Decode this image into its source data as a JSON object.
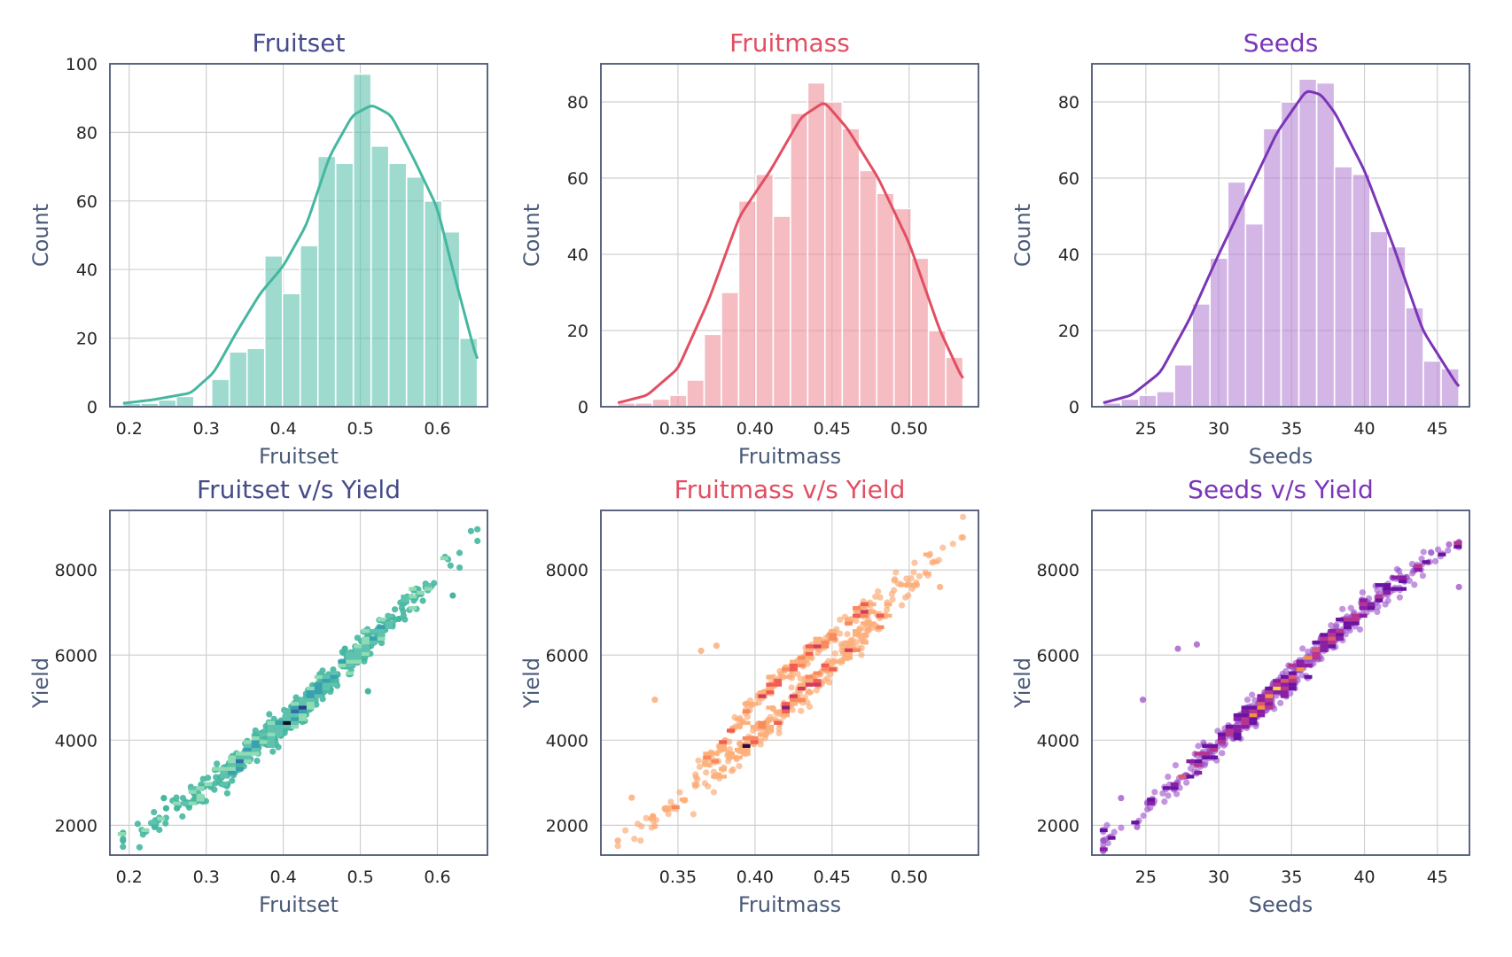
{
  "colors": {
    "fruitset": "#5ec2ae",
    "fruitset_line": "#45b7a0",
    "fruitmass": "#ee8f99",
    "fruitmass_line": "#e24e62",
    "seeds": "#b586d4",
    "seeds_line": "#7b35b8",
    "title_fruitset": "#454b8a",
    "title_fruitmass": "#e24e62",
    "title_seeds": "#7b35b8"
  },
  "chart_data": [
    {
      "type": "bar",
      "subtype": "histogram",
      "title": "Fruitset",
      "xlabel": "Fruitset",
      "ylabel": "Count",
      "xlim": [
        0.175,
        0.665
      ],
      "ylim": [
        0,
        100
      ],
      "xticks": [
        0.2,
        0.3,
        0.4,
        0.5,
        0.6
      ],
      "xtick_labels": [
        "0.2",
        "0.3",
        "0.4",
        "0.5",
        "0.6"
      ],
      "yticks": [
        0,
        20,
        40,
        60,
        80,
        100
      ],
      "ytick_labels": [
        "0",
        "20",
        "40",
        "60",
        "80",
        "100"
      ],
      "bin_edges": [
        0.192,
        0.215,
        0.238,
        0.261,
        0.284,
        0.307,
        0.33,
        0.353,
        0.376,
        0.399,
        0.422,
        0.445,
        0.468,
        0.491,
        0.514,
        0.537,
        0.56,
        0.583,
        0.606,
        0.629,
        0.652
      ],
      "values": [
        1,
        1,
        2,
        3,
        0,
        8,
        16,
        17,
        44,
        33,
        47,
        73,
        71,
        97,
        76,
        71,
        67,
        60,
        51,
        20
      ],
      "kde_x": [
        0.192,
        0.23,
        0.28,
        0.31,
        0.34,
        0.37,
        0.4,
        0.43,
        0.46,
        0.49,
        0.515,
        0.54,
        0.57,
        0.6,
        0.62,
        0.652
      ],
      "kde_y": [
        1,
        2,
        4,
        10,
        22,
        33,
        41,
        53,
        73,
        85,
        88,
        85,
        72,
        58,
        40,
        13
      ],
      "grid": true
    },
    {
      "type": "bar",
      "subtype": "histogram",
      "title": "Fruitmass",
      "xlabel": "Fruitmass",
      "ylabel": "Count",
      "xlim": [
        0.3,
        0.545
      ],
      "ylim": [
        0,
        90
      ],
      "xticks": [
        0.35,
        0.4,
        0.45,
        0.5
      ],
      "xtick_labels": [
        "0.35",
        "0.40",
        "0.45",
        "0.50"
      ],
      "yticks": [
        0,
        20,
        40,
        60,
        80
      ],
      "ytick_labels": [
        "0",
        "20",
        "40",
        "60",
        "80"
      ],
      "bin_edges": [
        0.311,
        0.3222,
        0.3334,
        0.3446,
        0.3558,
        0.367,
        0.3782,
        0.3894,
        0.4006,
        0.4118,
        0.423,
        0.4342,
        0.4454,
        0.4566,
        0.4678,
        0.479,
        0.4902,
        0.5014,
        0.5126,
        0.5238,
        0.535
      ],
      "values": [
        1,
        1,
        2,
        3,
        7,
        19,
        30,
        54,
        61,
        50,
        77,
        85,
        80,
        73,
        62,
        56,
        52,
        39,
        20,
        13
      ],
      "kde_x": [
        0.311,
        0.33,
        0.35,
        0.37,
        0.39,
        0.41,
        0.43,
        0.445,
        0.46,
        0.48,
        0.5,
        0.52,
        0.535
      ],
      "kde_y": [
        1,
        3,
        10,
        28,
        50,
        62,
        76,
        80,
        73,
        60,
        43,
        20,
        7
      ],
      "grid": true
    },
    {
      "type": "bar",
      "subtype": "histogram",
      "title": "Seeds",
      "xlabel": "Seeds",
      "ylabel": "Count",
      "xlim": [
        21.3,
        47.2
      ],
      "ylim": [
        0,
        90
      ],
      "xticks": [
        25,
        30,
        35,
        40,
        45
      ],
      "xtick_labels": [
        "25",
        "30",
        "35",
        "40",
        "45"
      ],
      "yticks": [
        0,
        20,
        40,
        60,
        80
      ],
      "ytick_labels": [
        "0",
        "20",
        "40",
        "60",
        "80"
      ],
      "bin_edges": [
        22.08,
        23.3,
        24.52,
        25.74,
        26.96,
        28.18,
        29.4,
        30.62,
        31.84,
        33.06,
        34.28,
        35.5,
        36.72,
        37.94,
        39.16,
        40.38,
        41.6,
        42.82,
        44.04,
        45.26,
        46.48
      ],
      "values": [
        1,
        2,
        3,
        4,
        11,
        27,
        39,
        59,
        48,
        73,
        80,
        86,
        85,
        63,
        61,
        46,
        42,
        26,
        12,
        10
      ],
      "kde_x": [
        22.08,
        24,
        26,
        28,
        30,
        32,
        34,
        36,
        37,
        38,
        40,
        42,
        44,
        46.48
      ],
      "kde_y": [
        1,
        3,
        9,
        23,
        40,
        56,
        72,
        83,
        82,
        77,
        62,
        42,
        20,
        5
      ],
      "grid": true
    },
    {
      "type": "heatmap",
      "subtype": "scatter_with_2d_histogram",
      "title": "Fruitset v/s Yield",
      "xlabel": "Fruitset",
      "ylabel": "Yield",
      "xlim": [
        0.175,
        0.665
      ],
      "ylim": [
        1300,
        9400
      ],
      "xticks": [
        0.2,
        0.3,
        0.4,
        0.5,
        0.6
      ],
      "xtick_labels": [
        "0.2",
        "0.3",
        "0.4",
        "0.5",
        "0.6"
      ],
      "yticks": [
        2000,
        4000,
        6000,
        8000
      ],
      "ytick_labels": [
        "2000",
        "4000",
        "6000",
        "8000"
      ],
      "trend": [
        [
          0.192,
          1640
        ],
        [
          0.3,
          2900
        ],
        [
          0.4,
          4350
        ],
        [
          0.5,
          6100
        ],
        [
          0.6,
          7800
        ],
        [
          0.652,
          9000
        ]
      ],
      "points": [
        [
          0.192,
          1640
        ],
        [
          0.233,
          1960
        ],
        [
          0.245,
          2640
        ],
        [
          0.248,
          2400
        ],
        [
          0.262,
          2400
        ],
        [
          0.278,
          2480
        ],
        [
          0.285,
          2620
        ],
        [
          0.51,
          5150
        ],
        [
          0.48,
          6150
        ],
        [
          0.55,
          6850
        ],
        [
          0.62,
          7400
        ]
      ],
      "grid": true
    },
    {
      "type": "heatmap",
      "subtype": "scatter_with_2d_histogram",
      "title": "Fruitmass v/s Yield",
      "xlabel": "Fruitmass",
      "ylabel": "Yield",
      "xlim": [
        0.3,
        0.545
      ],
      "ylim": [
        1300,
        9400
      ],
      "xticks": [
        0.35,
        0.4,
        0.45,
        0.5
      ],
      "xtick_labels": [
        "0.35",
        "0.40",
        "0.45",
        "0.50"
      ],
      "yticks": [
        2000,
        4000,
        6000,
        8000
      ],
      "ytick_labels": [
        "2000",
        "4000",
        "6000",
        "8000"
      ],
      "trend": [
        [
          0.311,
          1640
        ],
        [
          0.35,
          2500
        ],
        [
          0.4,
          4000
        ],
        [
          0.45,
          5750
        ],
        [
          0.5,
          7600
        ],
        [
          0.535,
          8900
        ]
      ],
      "trend_upper": [
        [
          0.36,
          3100
        ],
        [
          0.4,
          4900
        ],
        [
          0.45,
          6500
        ],
        [
          0.5,
          7900
        ],
        [
          0.535,
          8800
        ]
      ],
      "points": [
        [
          0.311,
          1640
        ],
        [
          0.32,
          2650
        ],
        [
          0.335,
          1980
        ],
        [
          0.335,
          4950
        ],
        [
          0.375,
          6220
        ],
        [
          0.365,
          6100
        ],
        [
          0.342,
          2400
        ],
        [
          0.52,
          7600
        ],
        [
          0.505,
          7650
        ]
      ],
      "grid": true
    },
    {
      "type": "heatmap",
      "subtype": "scatter_with_2d_histogram",
      "title": "Seeds v/s Yield",
      "xlabel": "Seeds",
      "ylabel": "Yield",
      "xlim": [
        21.3,
        47.2
      ],
      "ylim": [
        1300,
        9400
      ],
      "xticks": [
        25,
        30,
        35,
        40,
        45
      ],
      "xtick_labels": [
        "25",
        "30",
        "35",
        "40",
        "45"
      ],
      "yticks": [
        2000,
        4000,
        6000,
        8000
      ],
      "ytick_labels": [
        "2000",
        "4000",
        "6000",
        "8000"
      ],
      "trend": [
        [
          22.08,
          1640
        ],
        [
          26,
          2700
        ],
        [
          30,
          3900
        ],
        [
          35,
          5500
        ],
        [
          40,
          7100
        ],
        [
          46.48,
          8700
        ]
      ],
      "points": [
        [
          22.08,
          1640
        ],
        [
          23.3,
          2640
        ],
        [
          24.4,
          1960
        ],
        [
          24.8,
          4950
        ],
        [
          27.2,
          6150
        ],
        [
          28.5,
          6250
        ],
        [
          46.48,
          7600
        ],
        [
          45.8,
          8600
        ]
      ],
      "grid": true
    }
  ]
}
